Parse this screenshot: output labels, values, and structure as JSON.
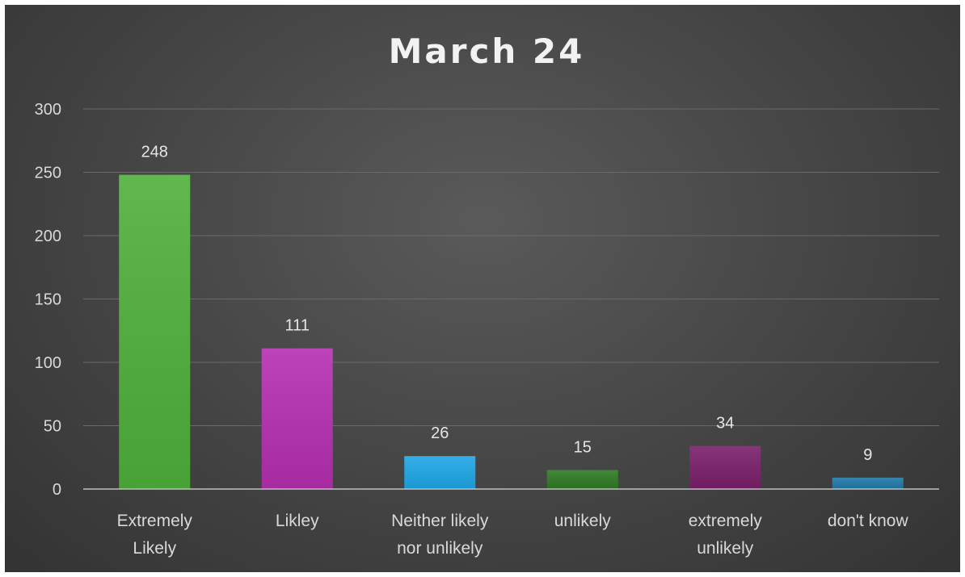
{
  "chart_data": {
    "type": "bar",
    "title": "March 24",
    "categories": [
      [
        "Extremely",
        "Likely"
      ],
      [
        "Likley"
      ],
      [
        "Neither likely",
        "nor unlikely"
      ],
      [
        "unlikely"
      ],
      [
        "extremely",
        "unlikely"
      ],
      [
        "don't know"
      ]
    ],
    "values": [
      248,
      111,
      26,
      15,
      34,
      9
    ],
    "data_labels": [
      "248",
      "111",
      "26",
      "15",
      "34",
      "9"
    ],
    "colors": [
      "#4fb03a",
      "#b52fb0",
      "#1ea6e6",
      "#2f7a24",
      "#7a1f6a",
      "#2079a8"
    ],
    "ylim": [
      0,
      300
    ],
    "yticks": [
      "0",
      "50",
      "100",
      "150",
      "200",
      "250",
      "300"
    ],
    "grid": true,
    "legend": "none",
    "xlabel": "",
    "ylabel": ""
  }
}
